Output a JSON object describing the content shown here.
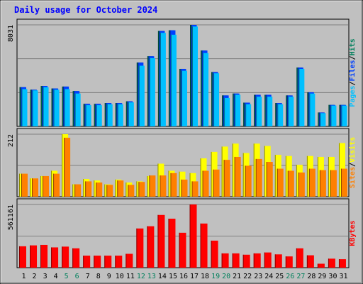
{
  "title": "Daily usage for October 2024",
  "colors": {
    "background": "#C0C0C0",
    "title": "#0000FF",
    "hits": "#00805C",
    "files": "#0040FF",
    "pages": "#00C0FF",
    "visits": "#FFFF00",
    "sites": "#FF8000",
    "kbytes": "#FF0000",
    "weekend": "#00805C",
    "weekday": "#000000"
  },
  "chart_data": [
    {
      "type": "bar",
      "name": "hits-files-pages",
      "y_axis_max_label": "8031",
      "right_legend": [
        "Pages",
        "/",
        "Files",
        "/",
        "Hits"
      ],
      "categories": [
        "1",
        "2",
        "3",
        "4",
        "5",
        "6",
        "7",
        "8",
        "9",
        "10",
        "11",
        "12",
        "13",
        "14",
        "15",
        "16",
        "17",
        "18",
        "19",
        "20",
        "21",
        "22",
        "23",
        "24",
        "25",
        "26",
        "27",
        "28",
        "29",
        "30",
        "31"
      ],
      "weekend_days": [
        "5",
        "6",
        "12",
        "13",
        "19",
        "20",
        "26",
        "27"
      ],
      "ylim": [
        0,
        8031
      ],
      "series": [
        {
          "name": "Hits",
          "values": [
            3100,
            2900,
            3200,
            3000,
            3150,
            2800,
            1780,
            1780,
            1850,
            1850,
            1980,
            5050,
            5550,
            7550,
            7600,
            4550,
            8031,
            6000,
            4300,
            2450,
            2600,
            1880,
            2500,
            2500,
            1850,
            2450,
            4650,
            2700,
            1100,
            1700,
            1700
          ]
        },
        {
          "name": "Files",
          "values": [
            3100,
            2900,
            3200,
            3000,
            3150,
            2800,
            1780,
            1780,
            1850,
            1850,
            1980,
            5050,
            5550,
            7550,
            7600,
            4550,
            8031,
            6000,
            4300,
            2450,
            2600,
            1880,
            2500,
            2500,
            1850,
            2450,
            4650,
            2700,
            1100,
            1700,
            1700
          ]
        },
        {
          "name": "Pages",
          "values": [
            2950,
            2850,
            3100,
            2900,
            2950,
            2600,
            1680,
            1680,
            1750,
            1750,
            1900,
            4800,
            5400,
            7400,
            7250,
            4400,
            7900,
            5800,
            4200,
            2250,
            2500,
            1750,
            2350,
            2350,
            1750,
            2350,
            4550,
            2600,
            1050,
            1650,
            1650
          ]
        }
      ]
    },
    {
      "type": "bar",
      "name": "visits-sites",
      "y_axis_max_label": "212",
      "right_legend": [
        "Sites",
        "/",
        "Visits"
      ],
      "categories": [
        "1",
        "2",
        "3",
        "4",
        "5",
        "6",
        "7",
        "8",
        "9",
        "10",
        "11",
        "12",
        "13",
        "14",
        "15",
        "16",
        "17",
        "18",
        "19",
        "20",
        "21",
        "22",
        "23",
        "24",
        "25",
        "26",
        "27",
        "28",
        "29",
        "30",
        "31"
      ],
      "ylim": [
        0,
        212
      ],
      "series": [
        {
          "name": "Visits",
          "values": [
            78,
            62,
            70,
            88,
            212,
            42,
            60,
            55,
            42,
            58,
            48,
            52,
            70,
            112,
            88,
            85,
            80,
            130,
            152,
            170,
            180,
            148,
            180,
            172,
            142,
            138,
            108,
            138,
            135,
            135,
            182
          ]
        },
        {
          "name": "Sites",
          "values": [
            78,
            62,
            70,
            78,
            200,
            42,
            52,
            48,
            40,
            55,
            40,
            50,
            72,
            72,
            80,
            58,
            52,
            88,
            92,
            125,
            135,
            105,
            128,
            118,
            95,
            88,
            82,
            95,
            90,
            90,
            95
          ]
        }
      ]
    },
    {
      "type": "bar",
      "name": "kbytes",
      "y_axis_max_label": "561161",
      "right_legend": [
        "KBytes"
      ],
      "categories": [
        "1",
        "2",
        "3",
        "4",
        "5",
        "6",
        "7",
        "8",
        "9",
        "10",
        "11",
        "12",
        "13",
        "14",
        "15",
        "16",
        "17",
        "18",
        "19",
        "20",
        "21",
        "22",
        "23",
        "24",
        "25",
        "26",
        "27",
        "28",
        "29",
        "30",
        "31"
      ],
      "ylim": [
        0,
        561161
      ],
      "series": [
        {
          "name": "KBytes",
          "values": [
            190000,
            198000,
            202000,
            180000,
            187000,
            172000,
            107000,
            107000,
            107000,
            107000,
            123000,
            348000,
            368000,
            468000,
            435000,
            310000,
            561161,
            392000,
            240000,
            127000,
            127000,
            115000,
            127000,
            135000,
            118000,
            100000,
            172000,
            110000,
            35000,
            80000,
            75000
          ]
        }
      ]
    }
  ]
}
